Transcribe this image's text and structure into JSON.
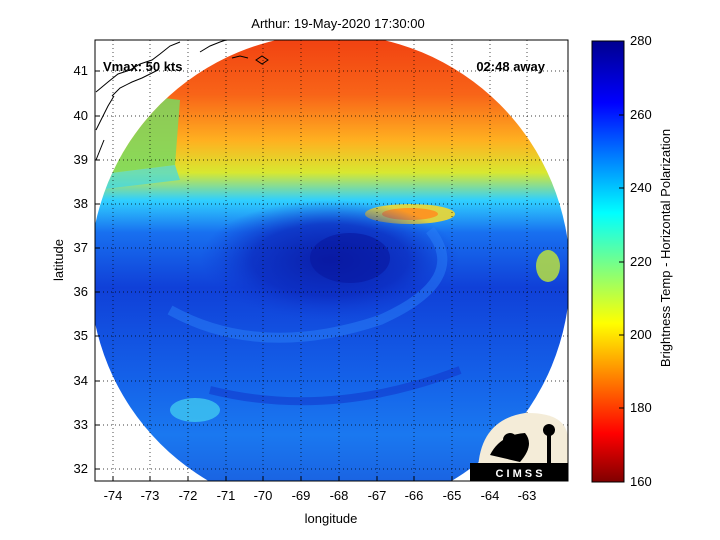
{
  "title": "Arthur: 19-May-2020 17:30:00",
  "vmax_label": "Vmax: 50 kts",
  "time_offset_label": "02:48 away",
  "xlabel": "longitude",
  "ylabel": "latitude",
  "colorbar_label": "Brightness Temp - Horizontal Polarization",
  "logo_text": "C I M S S",
  "axes": {
    "x_ticks": [
      "-74",
      "-73",
      "-72",
      "-71",
      "-70",
      "-69",
      "-68",
      "-67",
      "-66",
      "-65",
      "-64",
      "-63"
    ],
    "y_ticks": [
      "32",
      "33",
      "34",
      "35",
      "36",
      "37",
      "38",
      "39",
      "40",
      "41"
    ],
    "x_range": [
      -74.5,
      -62.2
    ],
    "y_range": [
      31.7,
      41.7
    ],
    "grid": true
  },
  "colorbar": {
    "ticks": [
      "160",
      "180",
      "200",
      "220",
      "240",
      "260",
      "280"
    ],
    "range": [
      160,
      280
    ],
    "colormap": "jet"
  },
  "colors": {
    "cold_core": "#0a28c8",
    "warm_north": "#f03c14",
    "coast_line": "#000000"
  }
}
